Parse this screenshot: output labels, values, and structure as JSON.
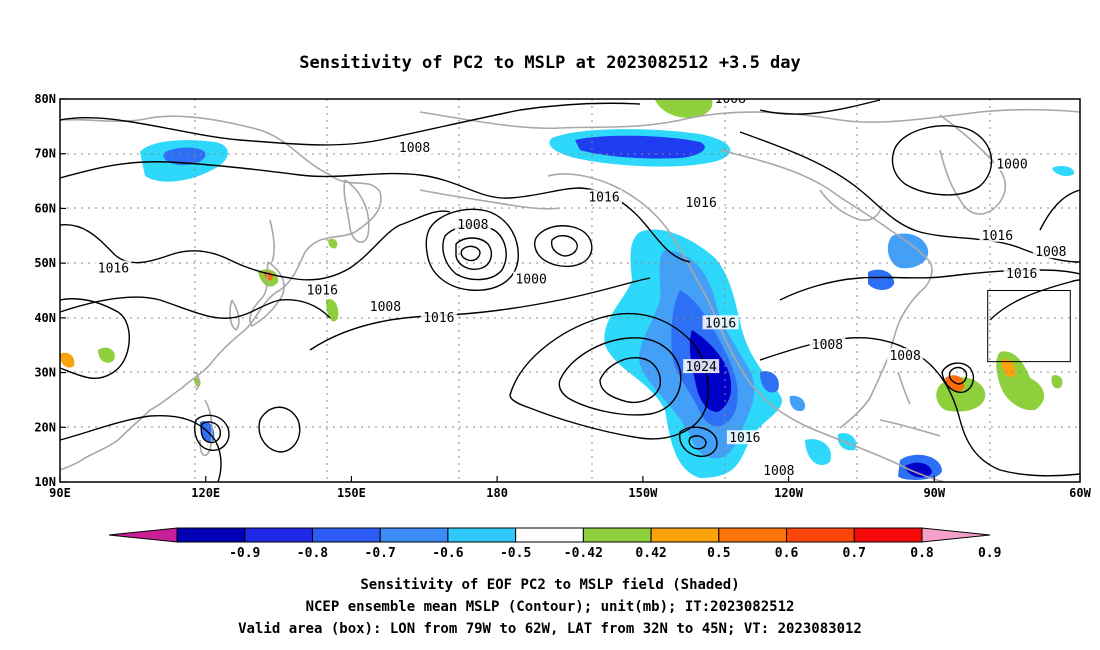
{
  "title": "Sensitivity of PC2 to MSLP at 2023082512 +3.5 day",
  "map": {
    "lon_range": [
      90,
      300
    ],
    "lat_range": [
      10,
      80
    ],
    "lon_ticks": [
      {
        "lon": 90,
        "label": "90E"
      },
      {
        "lon": 120,
        "label": "120E"
      },
      {
        "lon": 150,
        "label": "150E"
      },
      {
        "lon": 180,
        "label": "180"
      },
      {
        "lon": 210,
        "label": "150W"
      },
      {
        "lon": 240,
        "label": "120W"
      },
      {
        "lon": 270,
        "label": "90W"
      },
      {
        "lon": 300,
        "label": "60W"
      }
    ],
    "lat_ticks": [
      {
        "lat": 10,
        "label": "10N"
      },
      {
        "lat": 20,
        "label": "20N"
      },
      {
        "lat": 30,
        "label": "30N"
      },
      {
        "lat": 40,
        "label": "40N"
      },
      {
        "lat": 50,
        "label": "50N"
      },
      {
        "lat": 60,
        "label": "60N"
      },
      {
        "lat": 70,
        "label": "70N"
      },
      {
        "lat": 80,
        "label": "80N"
      }
    ],
    "grid": "dotted",
    "valid_box": {
      "lon_min": 281,
      "lon_max": 298,
      "lat_min": 32,
      "lat_max": 45
    },
    "contour_labels": [
      {
        "text": "1008",
        "lon": 228,
        "lat": 80
      },
      {
        "text": "1008",
        "lon": 163,
        "lat": 71
      },
      {
        "text": "1000",
        "lon": 286,
        "lat": 68
      },
      {
        "text": "1016",
        "lon": 202,
        "lat": 62
      },
      {
        "text": "1016",
        "lon": 222,
        "lat": 61
      },
      {
        "text": "1008",
        "lon": 175,
        "lat": 57
      },
      {
        "text": "1000",
        "lon": 187,
        "lat": 47
      },
      {
        "text": "1016",
        "lon": 101,
        "lat": 49
      },
      {
        "text": "1016",
        "lon": 144,
        "lat": 45
      },
      {
        "text": "1008",
        "lon": 157,
        "lat": 42
      },
      {
        "text": "1016",
        "lon": 168,
        "lat": 40
      },
      {
        "text": "1016",
        "lon": 226,
        "lat": 39
      },
      {
        "text": "1008",
        "lon": 248,
        "lat": 35
      },
      {
        "text": "1008",
        "lon": 264,
        "lat": 33
      },
      {
        "text": "1024",
        "lon": 222,
        "lat": 31
      },
      {
        "text": "1016",
        "lon": 231,
        "lat": 18
      },
      {
        "text": "1008",
        "lon": 238,
        "lat": 12
      },
      {
        "text": "1016",
        "lon": 283,
        "lat": 55
      },
      {
        "text": "1008",
        "lon": 294,
        "lat": 52
      },
      {
        "text": "1016",
        "lon": 288,
        "lat": 48
      }
    ],
    "shading_colors": [
      "#0000c8",
      "#1e3cf0",
      "#2e70f5",
      "#44a0f7",
      "#2ed8fa",
      "#8ed03b",
      "#fba30b",
      "#fc6e0a",
      "#fa3c0a"
    ]
  },
  "colorbar": {
    "labels": [
      "-0.9",
      "-0.8",
      "-0.7",
      "-0.6",
      "-0.5",
      "-0.42",
      "0.42",
      "0.5",
      "0.6",
      "0.7",
      "0.8",
      "0.9"
    ],
    "colors": [
      "#0000b4",
      "#1e28e6",
      "#2e5cf5",
      "#3c8cf5",
      "#2ec8fa",
      "#ffffff",
      "#8ed03b",
      "#fba30b",
      "#fc730a",
      "#fa460a",
      "#f50a0a"
    ],
    "low_color": "#c81e96",
    "high_color": "#f5a0c8"
  },
  "captions": {
    "line1": "Sensitivity of EOF PC2 to MSLP field (Shaded)",
    "line2": "NCEP ensemble mean MSLP (Contour); unit(mb); IT:2023082512",
    "line3": "Valid area (box): LON from 79W to 62W, LAT from 32N to 45N; VT: 2023083012"
  }
}
